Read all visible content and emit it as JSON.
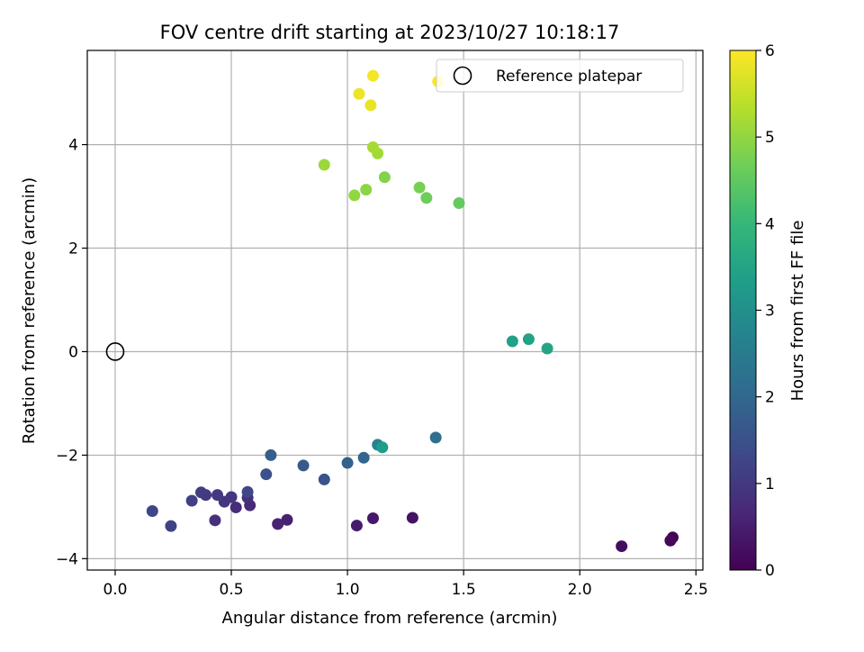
{
  "chart_data": {
    "type": "scatter",
    "title": "FOV centre drift starting at 2023/10/27 10:18:17",
    "xlabel": "Angular distance from reference (arcmin)",
    "ylabel": "Rotation from reference (arcmin)",
    "xlim": [
      -0.12,
      2.53
    ],
    "ylim": [
      -4.22,
      5.82
    ],
    "xticks": [
      0.0,
      0.5,
      1.0,
      1.5,
      2.0,
      2.5
    ],
    "xtick_labels": [
      "0.0",
      "0.5",
      "1.0",
      "1.5",
      "2.0",
      "2.5"
    ],
    "yticks": [
      -4,
      -2,
      0,
      2,
      4
    ],
    "ytick_labels": [
      "−4",
      "−2",
      "0",
      "2",
      "4"
    ],
    "grid": true,
    "legend": {
      "placement": "top-right",
      "label": "Reference platepar"
    },
    "reference_point": {
      "x": 0,
      "y": 0,
      "marker": "open-circle"
    },
    "colorbar": {
      "label": "Hours from first FF file",
      "min": 0,
      "max": 6,
      "ticks": [
        0,
        1,
        2,
        3,
        4,
        5,
        6
      ],
      "tick_labels": [
        "0",
        "1",
        "2",
        "3",
        "4",
        "5",
        "6"
      ],
      "colormap": "viridis",
      "stops": [
        "#440154",
        "#482878",
        "#3e4989",
        "#31688e",
        "#26828e",
        "#1f9e89",
        "#35b779",
        "#6ece58",
        "#b5de2b",
        "#fde725"
      ]
    },
    "points": [
      {
        "x": 2.4,
        "y": -3.59,
        "c": 0.05
      },
      {
        "x": 2.39,
        "y": -3.65,
        "c": 0.1
      },
      {
        "x": 2.18,
        "y": -3.76,
        "c": 0.2
      },
      {
        "x": 1.28,
        "y": -3.21,
        "c": 0.3
      },
      {
        "x": 1.11,
        "y": -3.22,
        "c": 0.4
      },
      {
        "x": 1.04,
        "y": -3.36,
        "c": 0.45
      },
      {
        "x": 0.74,
        "y": -3.25,
        "c": 0.55
      },
      {
        "x": 0.7,
        "y": -3.33,
        "c": 0.6
      },
      {
        "x": 0.58,
        "y": -2.97,
        "c": 0.7
      },
      {
        "x": 0.52,
        "y": -3.01,
        "c": 0.75
      },
      {
        "x": 0.57,
        "y": -2.82,
        "c": 0.8
      },
      {
        "x": 0.43,
        "y": -3.26,
        "c": 0.85
      },
      {
        "x": 0.47,
        "y": -2.9,
        "c": 0.9
      },
      {
        "x": 0.5,
        "y": -2.81,
        "c": 0.95
      },
      {
        "x": 0.44,
        "y": -2.77,
        "c": 1.0
      },
      {
        "x": 0.39,
        "y": -2.77,
        "c": 1.05
      },
      {
        "x": 0.37,
        "y": -2.72,
        "c": 1.1
      },
      {
        "x": 0.33,
        "y": -2.88,
        "c": 1.15
      },
      {
        "x": 0.24,
        "y": -3.37,
        "c": 1.2
      },
      {
        "x": 0.16,
        "y": -3.08,
        "c": 1.25
      },
      {
        "x": 0.57,
        "y": -2.71,
        "c": 1.3
      },
      {
        "x": 0.65,
        "y": -2.37,
        "c": 1.5
      },
      {
        "x": 0.9,
        "y": -2.47,
        "c": 1.55
      },
      {
        "x": 0.81,
        "y": -2.2,
        "c": 1.7
      },
      {
        "x": 0.67,
        "y": -2.0,
        "c": 1.8
      },
      {
        "x": 1.0,
        "y": -2.15,
        "c": 1.85
      },
      {
        "x": 1.07,
        "y": -2.05,
        "c": 1.95
      },
      {
        "x": 1.38,
        "y": -1.66,
        "c": 2.2
      },
      {
        "x": 1.13,
        "y": -1.8,
        "c": 2.7
      },
      {
        "x": 1.15,
        "y": -1.85,
        "c": 3.3
      },
      {
        "x": 1.71,
        "y": 0.2,
        "c": 3.4
      },
      {
        "x": 1.78,
        "y": 0.24,
        "c": 3.45
      },
      {
        "x": 1.86,
        "y": 0.06,
        "c": 3.5
      },
      {
        "x": 1.48,
        "y": 2.87,
        "c": 4.55
      },
      {
        "x": 1.34,
        "y": 2.97,
        "c": 4.65
      },
      {
        "x": 1.31,
        "y": 3.17,
        "c": 4.75
      },
      {
        "x": 1.16,
        "y": 3.37,
        "c": 4.85
      },
      {
        "x": 1.08,
        "y": 3.13,
        "c": 4.95
      },
      {
        "x": 1.03,
        "y": 3.02,
        "c": 5.0
      },
      {
        "x": 0.9,
        "y": 3.61,
        "c": 5.1
      },
      {
        "x": 1.13,
        "y": 3.83,
        "c": 5.15
      },
      {
        "x": 1.11,
        "y": 3.95,
        "c": 5.2
      },
      {
        "x": 1.1,
        "y": 4.76,
        "c": 5.8
      },
      {
        "x": 1.05,
        "y": 4.98,
        "c": 5.85
      },
      {
        "x": 1.11,
        "y": 5.33,
        "c": 5.9
      },
      {
        "x": 1.39,
        "y": 5.22,
        "c": 5.95
      }
    ]
  }
}
